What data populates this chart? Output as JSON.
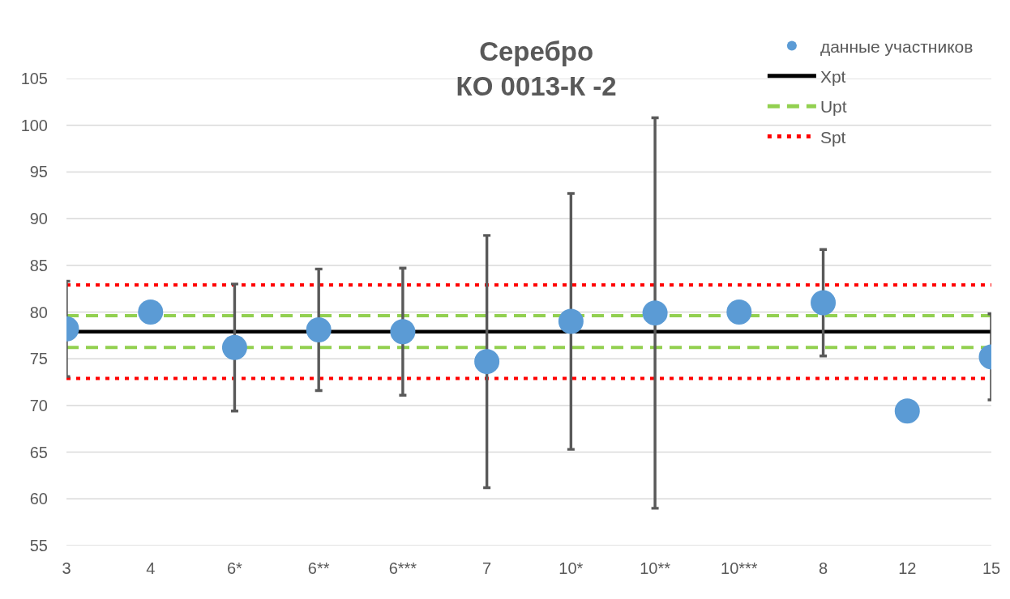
{
  "chart_data": {
    "type": "scatter",
    "title": "Серебро\nКО 0013-К -2",
    "categories": [
      "3",
      "4",
      "6*",
      "6**",
      "6***",
      "7",
      "10*",
      "10**",
      "10***",
      "8",
      "12",
      "15"
    ],
    "series": [
      {
        "name": "данные участников",
        "color": "#5b9bd5",
        "values": [
          78.2,
          80.0,
          76.2,
          78.1,
          77.9,
          74.7,
          79.0,
          79.9,
          80.0,
          81.0,
          69.4,
          75.2
        ],
        "errors": [
          5.1,
          null,
          6.8,
          6.5,
          6.8,
          13.5,
          13.7,
          20.9,
          null,
          5.7,
          null,
          4.6
        ]
      }
    ],
    "ref_lines": [
      {
        "axis": "y",
        "value": 77.9,
        "label": "Xpt",
        "color": "#000000",
        "line_style": "solid"
      },
      {
        "axis": "y",
        "value": 79.6,
        "label": "Upt",
        "color": "#92d050",
        "line_style": "dashed"
      },
      {
        "axis": "y",
        "value": 76.2,
        "color": "#92d050",
        "line_style": "dashed"
      },
      {
        "axis": "y",
        "value": 82.9,
        "label": "Spt",
        "color": "#ff0000",
        "line_style": "dotted"
      },
      {
        "axis": "y",
        "value": 72.9,
        "color": "#ff0000",
        "line_style": "dotted"
      }
    ],
    "ylim": [
      55,
      105
    ],
    "yticks": [
      55,
      60,
      65,
      70,
      75,
      80,
      85,
      90,
      95,
      100,
      105
    ],
    "marker": "circle",
    "grid": "y",
    "legend": "top right"
  }
}
